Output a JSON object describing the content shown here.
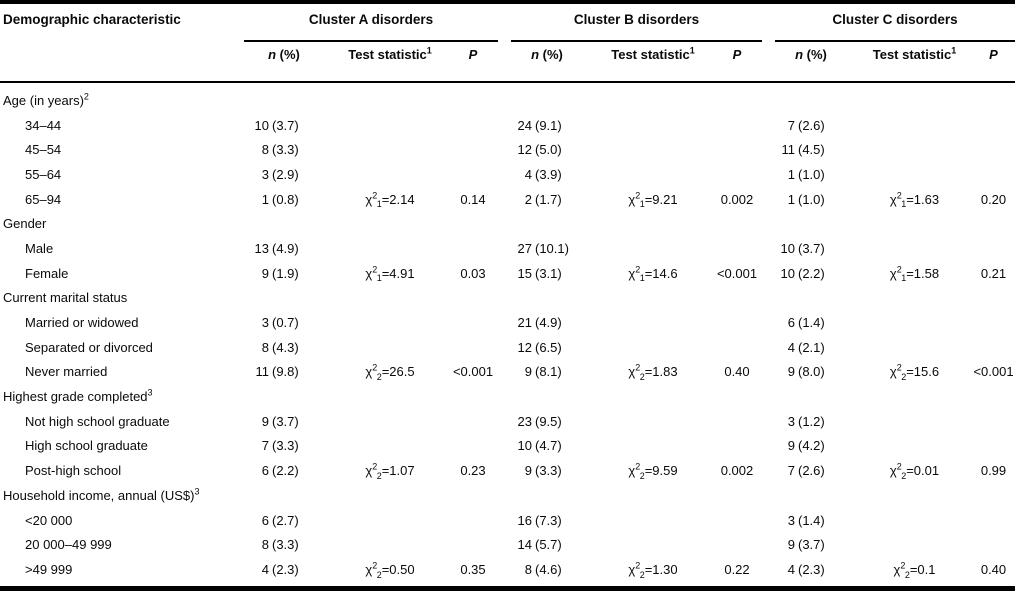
{
  "table": {
    "col_header": "Demographic characteristic",
    "groups": [
      "Cluster A disorders",
      "Cluster B disorders",
      "Cluster C disorders"
    ],
    "sub": {
      "n": "n",
      "pct": "(%)",
      "test": "Test statistic",
      "test_sup": "1",
      "p": "P"
    },
    "notation": {
      "chi": "χ",
      "exp": "2",
      "eq": "="
    },
    "sections": [
      {
        "label": "Age (in years)",
        "sup": "2",
        "rows": [
          {
            "label": "34–44",
            "cells": [
              {
                "n": "10",
                "pct": "(3.7)"
              },
              {
                "n": "24",
                "pct": "(9.1)"
              },
              {
                "n": "7",
                "pct": "(2.6)"
              }
            ]
          },
          {
            "label": "45–54",
            "cells": [
              {
                "n": "8",
                "pct": "(3.3)"
              },
              {
                "n": "12",
                "pct": "(5.0)"
              },
              {
                "n": "11",
                "pct": "(4.5)"
              }
            ]
          },
          {
            "label": "55–64",
            "cells": [
              {
                "n": "3",
                "pct": "(2.9)"
              },
              {
                "n": "4",
                "pct": "(3.9)"
              },
              {
                "n": "1",
                "pct": "(1.0)"
              }
            ]
          },
          {
            "label": "65–94",
            "cells": [
              {
                "n": "1",
                "pct": "(0.8)",
                "df": "1",
                "stat": "2.14",
                "p": "0.14"
              },
              {
                "n": "2",
                "pct": "(1.7)",
                "df": "1",
                "stat": "9.21",
                "p": "0.002"
              },
              {
                "n": "1",
                "pct": "(1.0)",
                "df": "1",
                "stat": "1.63",
                "p": "0.20"
              }
            ]
          }
        ]
      },
      {
        "label": "Gender",
        "rows": [
          {
            "label": "Male",
            "cells": [
              {
                "n": "13",
                "pct": "(4.9)"
              },
              {
                "n": "27",
                "pct": "(10.1)"
              },
              {
                "n": "10",
                "pct": "(3.7)"
              }
            ]
          },
          {
            "label": "Female",
            "cells": [
              {
                "n": "9",
                "pct": "(1.9)",
                "df": "1",
                "stat": "4.91",
                "p": "0.03"
              },
              {
                "n": "15",
                "pct": "(3.1)",
                "df": "1",
                "stat": "14.6",
                "p": "<0.001"
              },
              {
                "n": "10",
                "pct": "(2.2)",
                "df": "1",
                "stat": "1.58",
                "p": "0.21"
              }
            ]
          }
        ]
      },
      {
        "label": "Current marital status",
        "rows": [
          {
            "label": "Married or widowed",
            "cells": [
              {
                "n": "3",
                "pct": "(0.7)"
              },
              {
                "n": "21",
                "pct": "(4.9)"
              },
              {
                "n": "6",
                "pct": "(1.4)"
              }
            ]
          },
          {
            "label": "Separated or divorced",
            "cells": [
              {
                "n": "8",
                "pct": "(4.3)"
              },
              {
                "n": "12",
                "pct": "(6.5)"
              },
              {
                "n": "4",
                "pct": "(2.1)"
              }
            ]
          },
          {
            "label": "Never married",
            "cells": [
              {
                "n": "11",
                "pct": "(9.8)",
                "df": "2",
                "stat": "26.5",
                "p": "<0.001"
              },
              {
                "n": "9",
                "pct": "(8.1)",
                "df": "2",
                "stat": "1.83",
                "p": "0.40"
              },
              {
                "n": "9",
                "pct": "(8.0)",
                "df": "2",
                "stat": "15.6",
                "p": "<0.001"
              }
            ]
          }
        ]
      },
      {
        "label": "Highest grade completed",
        "sup": "3",
        "rows": [
          {
            "label": "Not high school graduate",
            "cells": [
              {
                "n": "9",
                "pct": "(3.7)"
              },
              {
                "n": "23",
                "pct": "(9.5)"
              },
              {
                "n": "3",
                "pct": "(1.2)"
              }
            ]
          },
          {
            "label": "High school graduate",
            "cells": [
              {
                "n": "7",
                "pct": "(3.3)"
              },
              {
                "n": "10",
                "pct": "(4.7)"
              },
              {
                "n": "9",
                "pct": "(4.2)"
              }
            ]
          },
          {
            "label": "Post-high school",
            "cells": [
              {
                "n": "6",
                "pct": "(2.2)",
                "df": "2",
                "stat": "1.07",
                "p": "0.23"
              },
              {
                "n": "9",
                "pct": "(3.3)",
                "df": "2",
                "stat": "9.59",
                "p": "0.002"
              },
              {
                "n": "7",
                "pct": "(2.6)",
                "df": "2",
                "stat": "0.01",
                "p": "0.99"
              }
            ]
          }
        ]
      },
      {
        "label": "Household income, annual (US$)",
        "sup": "3",
        "rows": [
          {
            "label": "<20 000",
            "cells": [
              {
                "n": "6",
                "pct": "(2.7)"
              },
              {
                "n": "16",
                "pct": "(7.3)"
              },
              {
                "n": "3",
                "pct": "(1.4)"
              }
            ]
          },
          {
            "label": "20 000–49 999",
            "cells": [
              {
                "n": "8",
                "pct": "(3.3)"
              },
              {
                "n": "14",
                "pct": "(5.7)"
              },
              {
                "n": "9",
                "pct": "(3.7)"
              }
            ]
          },
          {
            "label": ">49 999",
            "cells": [
              {
                "n": "4",
                "pct": "(2.3)",
                "df": "2",
                "stat": "0.50",
                "p": "0.35"
              },
              {
                "n": "8",
                "pct": "(4.6)",
                "df": "2",
                "stat": "1.30",
                "p": "0.22"
              },
              {
                "n": "4",
                "pct": "(2.3)",
                "df": "2",
                "stat": "0.1",
                "p": "0.40"
              }
            ]
          }
        ]
      }
    ]
  }
}
